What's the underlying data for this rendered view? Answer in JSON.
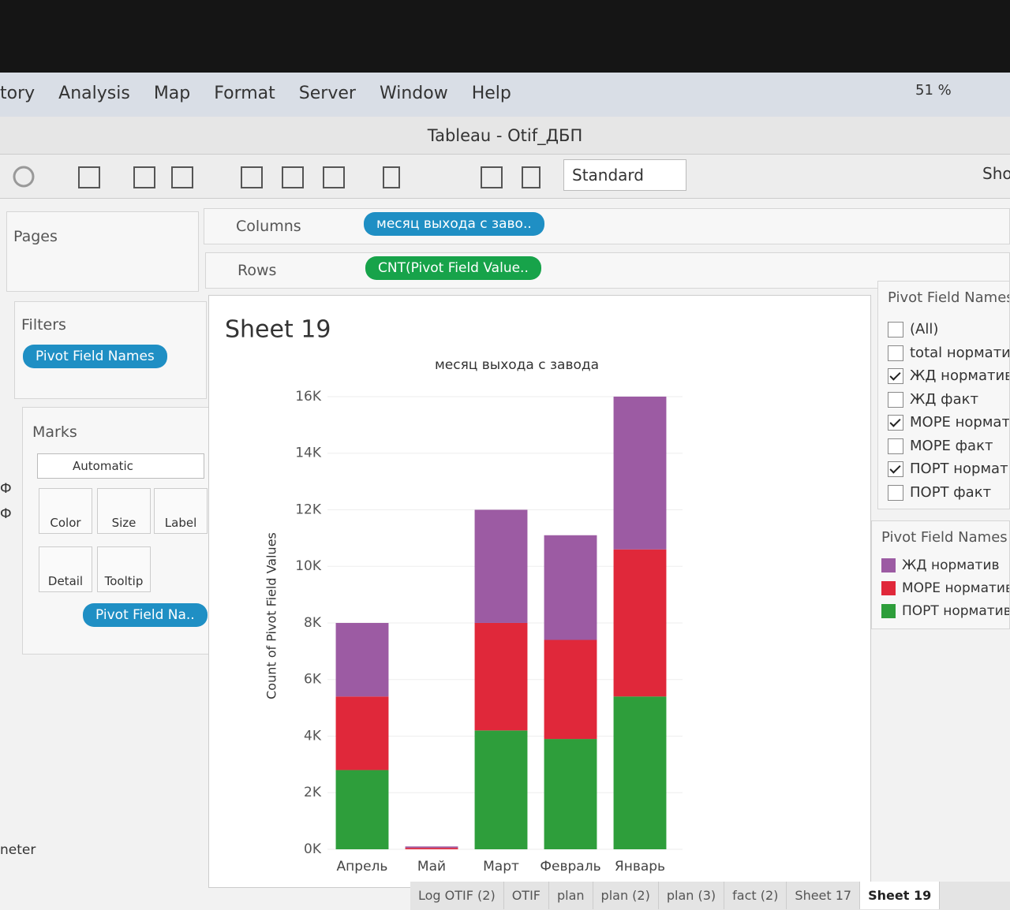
{
  "menu": [
    "tory",
    "Analysis",
    "Map",
    "Format",
    "Server",
    "Window",
    "Help"
  ],
  "status": {
    "battery": "51 %"
  },
  "window_title": "Tableau - Otif_ДБП",
  "toolbar": {
    "mark_dropdown": "Standard",
    "show_me": "Sho"
  },
  "shelves": {
    "pages": "Pages",
    "columns": {
      "label": "Columns",
      "pill": "месяц выхода с заво.."
    },
    "rows": {
      "label": "Rows",
      "pill": "CNT(Pivot Field Value.."
    }
  },
  "filters": {
    "title": "Filters",
    "pill": "Pivot Field Names"
  },
  "marks": {
    "title": "Marks",
    "type": "Automatic",
    "buttons": [
      "Color",
      "Size",
      "Label",
      "Detail",
      "Tooltip"
    ],
    "pill": "Pivot Field Na.."
  },
  "side_cut": [
    "Ф",
    "Ф",
    "neter"
  ],
  "filter_card": {
    "title": "Pivot Field Names",
    "items": [
      {
        "label": "(All)",
        "checked": false
      },
      {
        "label": "total нормати",
        "checked": false
      },
      {
        "label": "ЖД норматив",
        "checked": true
      },
      {
        "label": "ЖД факт",
        "checked": false
      },
      {
        "label": "МОРЕ нормати",
        "checked": true
      },
      {
        "label": "МОРЕ факт",
        "checked": false
      },
      {
        "label": "ПОРТ нормати",
        "checked": true
      },
      {
        "label": "ПОРТ факт",
        "checked": false
      }
    ]
  },
  "tabs": [
    "Log OTIF (2)",
    "OTIF",
    "plan",
    "plan (2)",
    "plan (3)",
    "fact (2)",
    "Sheet 17",
    "Sheet 19"
  ],
  "active_tab": 7,
  "chart_data": {
    "type": "bar",
    "stacked": true,
    "title": "Sheet 19",
    "subtitle": "месяц выхода с завода",
    "y_label": "Count of Pivot Field Values",
    "legend_title": "Pivot Field Names",
    "categories": [
      "Апрель",
      "Май",
      "Март",
      "Февраль",
      "Январь"
    ],
    "series": [
      {
        "name": "ПОРТ норматив",
        "color": "#2e9e3b",
        "values": [
          2800,
          0,
          4200,
          3900,
          5400
        ]
      },
      {
        "name": "МОРЕ норматив",
        "color": "#e0283a",
        "values": [
          2600,
          50,
          3800,
          3500,
          5200
        ]
      },
      {
        "name": "ЖД норматив",
        "color": "#9c5ba3",
        "values": [
          2600,
          50,
          4000,
          3700,
          5400
        ]
      }
    ],
    "legend_order": [
      2,
      1,
      0
    ],
    "ylim": [
      0,
      16500
    ],
    "yticks": [
      {
        "value": 0,
        "label": "0K"
      },
      {
        "value": 2000,
        "label": "2K"
      },
      {
        "value": 4000,
        "label": "4K"
      },
      {
        "value": 6000,
        "label": "6K"
      },
      {
        "value": 8000,
        "label": "8K"
      },
      {
        "value": 10000,
        "label": "10K"
      },
      {
        "value": 12000,
        "label": "12K"
      },
      {
        "value": 14000,
        "label": "14K"
      },
      {
        "value": 16000,
        "label": "16K"
      }
    ],
    "grid": true
  }
}
